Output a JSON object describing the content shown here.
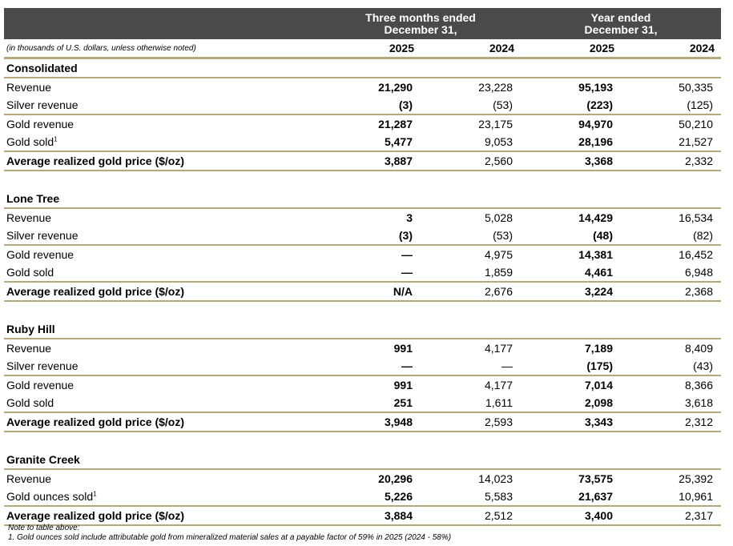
{
  "header": {
    "col_group_1": "Three months ended\nDecember 31,",
    "col_group_2": "Year ended\nDecember 31,",
    "units": "(in thousands of U.S. dollars, unless otherwise noted)",
    "years": [
      "2025",
      "2024",
      "2025",
      "2024"
    ]
  },
  "sections": [
    {
      "title": "Consolidated",
      "rows": [
        {
          "label": "Revenue",
          "values": [
            "21,290",
            "23,228",
            "95,193",
            "50,335"
          ]
        },
        {
          "label": "Silver revenue",
          "values": [
            "(3)",
            "(53)",
            "(223)",
            "(125)"
          ]
        },
        {
          "label": "Gold revenue",
          "values": [
            "21,287",
            "23,175",
            "94,970",
            "50,210"
          ]
        },
        {
          "label": "Gold sold",
          "sup": "1",
          "values": [
            "5,477",
            "9,053",
            "28,196",
            "21,527"
          ]
        },
        {
          "label": "Average realized gold price ($/oz)",
          "values": [
            "3,887",
            "2,560",
            "3,368",
            "2,332"
          ]
        }
      ]
    },
    {
      "title": "Lone Tree",
      "rows": [
        {
          "label": "Revenue",
          "values": [
            "3",
            "5,028",
            "14,429",
            "16,534"
          ]
        },
        {
          "label": "Silver revenue",
          "values": [
            "(3)",
            "(53)",
            "(48)",
            "(82)"
          ]
        },
        {
          "label": "Gold revenue",
          "values": [
            "—",
            "4,975",
            "14,381",
            "16,452"
          ]
        },
        {
          "label": "Gold sold",
          "values": [
            "—",
            "1,859",
            "4,461",
            "6,948"
          ]
        },
        {
          "label": "Average realized gold price ($/oz)",
          "values": [
            "N/A",
            "2,676",
            "3,224",
            "2,368"
          ]
        }
      ]
    },
    {
      "title": "Ruby Hill",
      "rows": [
        {
          "label": "Revenue",
          "values": [
            "991",
            "4,177",
            "7,189",
            "8,409"
          ]
        },
        {
          "label": "Silver revenue",
          "values": [
            "—",
            "—",
            "(175)",
            "(43)"
          ]
        },
        {
          "label": "Gold revenue",
          "values": [
            "991",
            "4,177",
            "7,014",
            "8,366"
          ]
        },
        {
          "label": "Gold sold",
          "values": [
            "251",
            "1,611",
            "2,098",
            "3,618"
          ]
        },
        {
          "label": "Average realized gold price ($/oz)",
          "values": [
            "3,948",
            "2,593",
            "3,343",
            "2,312"
          ]
        }
      ]
    },
    {
      "title": "Granite Creek",
      "rows": [
        {
          "label": "Revenue",
          "values": [
            "20,296",
            "14,023",
            "73,575",
            "25,392"
          ]
        },
        {
          "label": "Gold ounces sold",
          "sup": "1",
          "values": [
            "5,226",
            "5,583",
            "21,637",
            "10,961"
          ]
        },
        {
          "label": "Average realized gold price ($/oz)",
          "values": [
            "3,884",
            "2,512",
            "3,400",
            "2,317"
          ]
        }
      ]
    }
  ],
  "notes": {
    "title": "Note to table above:",
    "items": [
      "1. Gold ounces sold include attributable gold from mineralized material sales at a payable factor of 59% in 2025 (2024 - 58%)"
    ]
  }
}
